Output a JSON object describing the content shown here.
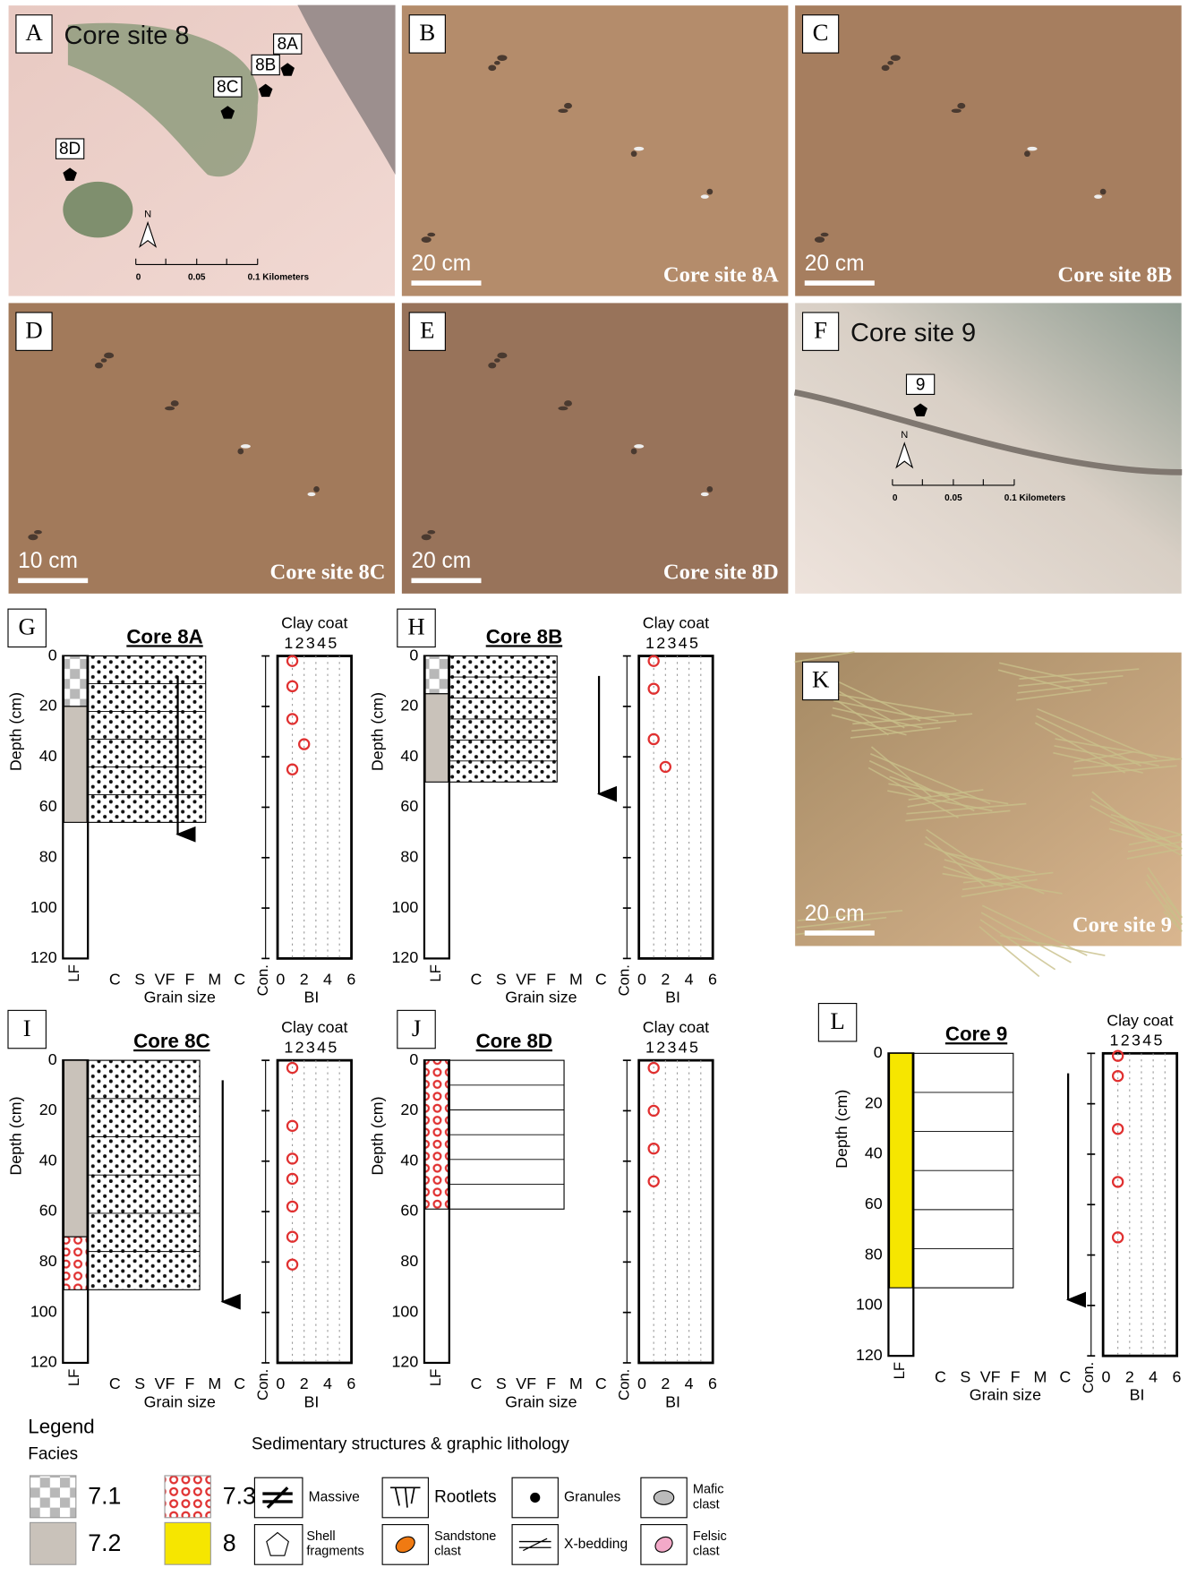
{
  "photos": [
    {
      "letter": "A",
      "title": "Core site 8",
      "sites": [
        "8A",
        "8B",
        "8C",
        "8D"
      ],
      "north": "N",
      "scale": [
        "0",
        "0.05",
        "0.1 Kilometers"
      ]
    },
    {
      "letter": "B",
      "scale": "20 cm",
      "caption": "Core site 8A"
    },
    {
      "letter": "C",
      "scale": "20 cm",
      "caption": "Core site 8B"
    },
    {
      "letter": "D",
      "scale": "10 cm",
      "caption": "Core site 8C"
    },
    {
      "letter": "E",
      "scale": "20 cm",
      "caption": "Core site 8D"
    },
    {
      "letter": "F",
      "title": "Core site 9",
      "sites": [
        "9"
      ],
      "north": "N",
      "scale": [
        "0",
        "0.05",
        "0.1 Kilometers"
      ]
    },
    {
      "letter": "K",
      "scale": "20 cm",
      "caption": "Core site 9"
    }
  ],
  "axes": {
    "depth_label": "Depth (cm)",
    "depth_ticks": [
      0,
      20,
      40,
      60,
      80,
      100,
      120
    ],
    "lf_label": "LF",
    "grain_classes": [
      "C",
      "S",
      "VF",
      "F",
      "M",
      "C"
    ],
    "con_label": "Con.",
    "grain_label": "Grain size",
    "clay_label": "Clay coat",
    "clay_ticks": [
      1,
      2,
      3,
      4,
      5
    ],
    "bi_label": "BI",
    "bi_ticks": [
      0,
      2,
      4,
      6
    ]
  },
  "cores": [
    {
      "letter": "G",
      "title": "Core 8A",
      "facies": [
        {
          "from": 0,
          "to": 20,
          "code": "7.1"
        },
        {
          "from": 20,
          "to": 66,
          "code": "7.2"
        }
      ],
      "bi": [
        {
          "depth": 2,
          "bi": 1
        },
        {
          "depth": 12,
          "bi": 1
        },
        {
          "depth": 25,
          "bi": 1
        },
        {
          "depth": 35,
          "bi": 2
        },
        {
          "depth": 45,
          "bi": 1
        }
      ]
    },
    {
      "letter": "H",
      "title": "Core 8B",
      "facies": [
        {
          "from": 0,
          "to": 15,
          "code": "7.1"
        },
        {
          "from": 15,
          "to": 50,
          "code": "7.2"
        }
      ],
      "bi": [
        {
          "depth": 2,
          "bi": 1
        },
        {
          "depth": 13,
          "bi": 1
        },
        {
          "depth": 33,
          "bi": 1
        },
        {
          "depth": 44,
          "bi": 2
        }
      ]
    },
    {
      "letter": "I",
      "title": "Core 8C",
      "facies": [
        {
          "from": 0,
          "to": 70,
          "code": "7.2"
        },
        {
          "from": 70,
          "to": 91,
          "code": "7.3"
        }
      ],
      "bi": [
        {
          "depth": 3,
          "bi": 1
        },
        {
          "depth": 26,
          "bi": 1
        },
        {
          "depth": 39,
          "bi": 1
        },
        {
          "depth": 47,
          "bi": 1
        },
        {
          "depth": 58,
          "bi": 1
        },
        {
          "depth": 70,
          "bi": 1
        },
        {
          "depth": 81,
          "bi": 1
        }
      ]
    },
    {
      "letter": "J",
      "title": "Core 8D",
      "facies": [
        {
          "from": 0,
          "to": 59,
          "code": "7.3"
        }
      ],
      "bi": [
        {
          "depth": 3,
          "bi": 1
        },
        {
          "depth": 20,
          "bi": 1
        },
        {
          "depth": 35,
          "bi": 1
        },
        {
          "depth": 48,
          "bi": 1
        }
      ]
    },
    {
      "letter": "L",
      "title": "Core 9",
      "facies": [
        {
          "from": 0,
          "to": 93,
          "code": "8"
        }
      ],
      "bi": [
        {
          "depth": 1,
          "bi": 1
        },
        {
          "depth": 9,
          "bi": 1
        },
        {
          "depth": 30,
          "bi": 1
        },
        {
          "depth": 51,
          "bi": 1
        },
        {
          "depth": 73,
          "bi": 1
        }
      ]
    }
  ],
  "legend": {
    "title": "Legend",
    "facies_title": "Facies",
    "facies": [
      "7.1",
      "7.3",
      "7.2",
      "8"
    ],
    "structures_title": "Sedimentary structures & graphic lithology",
    "items": [
      "Massive",
      "Rootlets",
      "Granules",
      "Mafic clast",
      "Shell fragments",
      "Sandstone clast",
      "X-bedding",
      "Felsic clast"
    ]
  }
}
